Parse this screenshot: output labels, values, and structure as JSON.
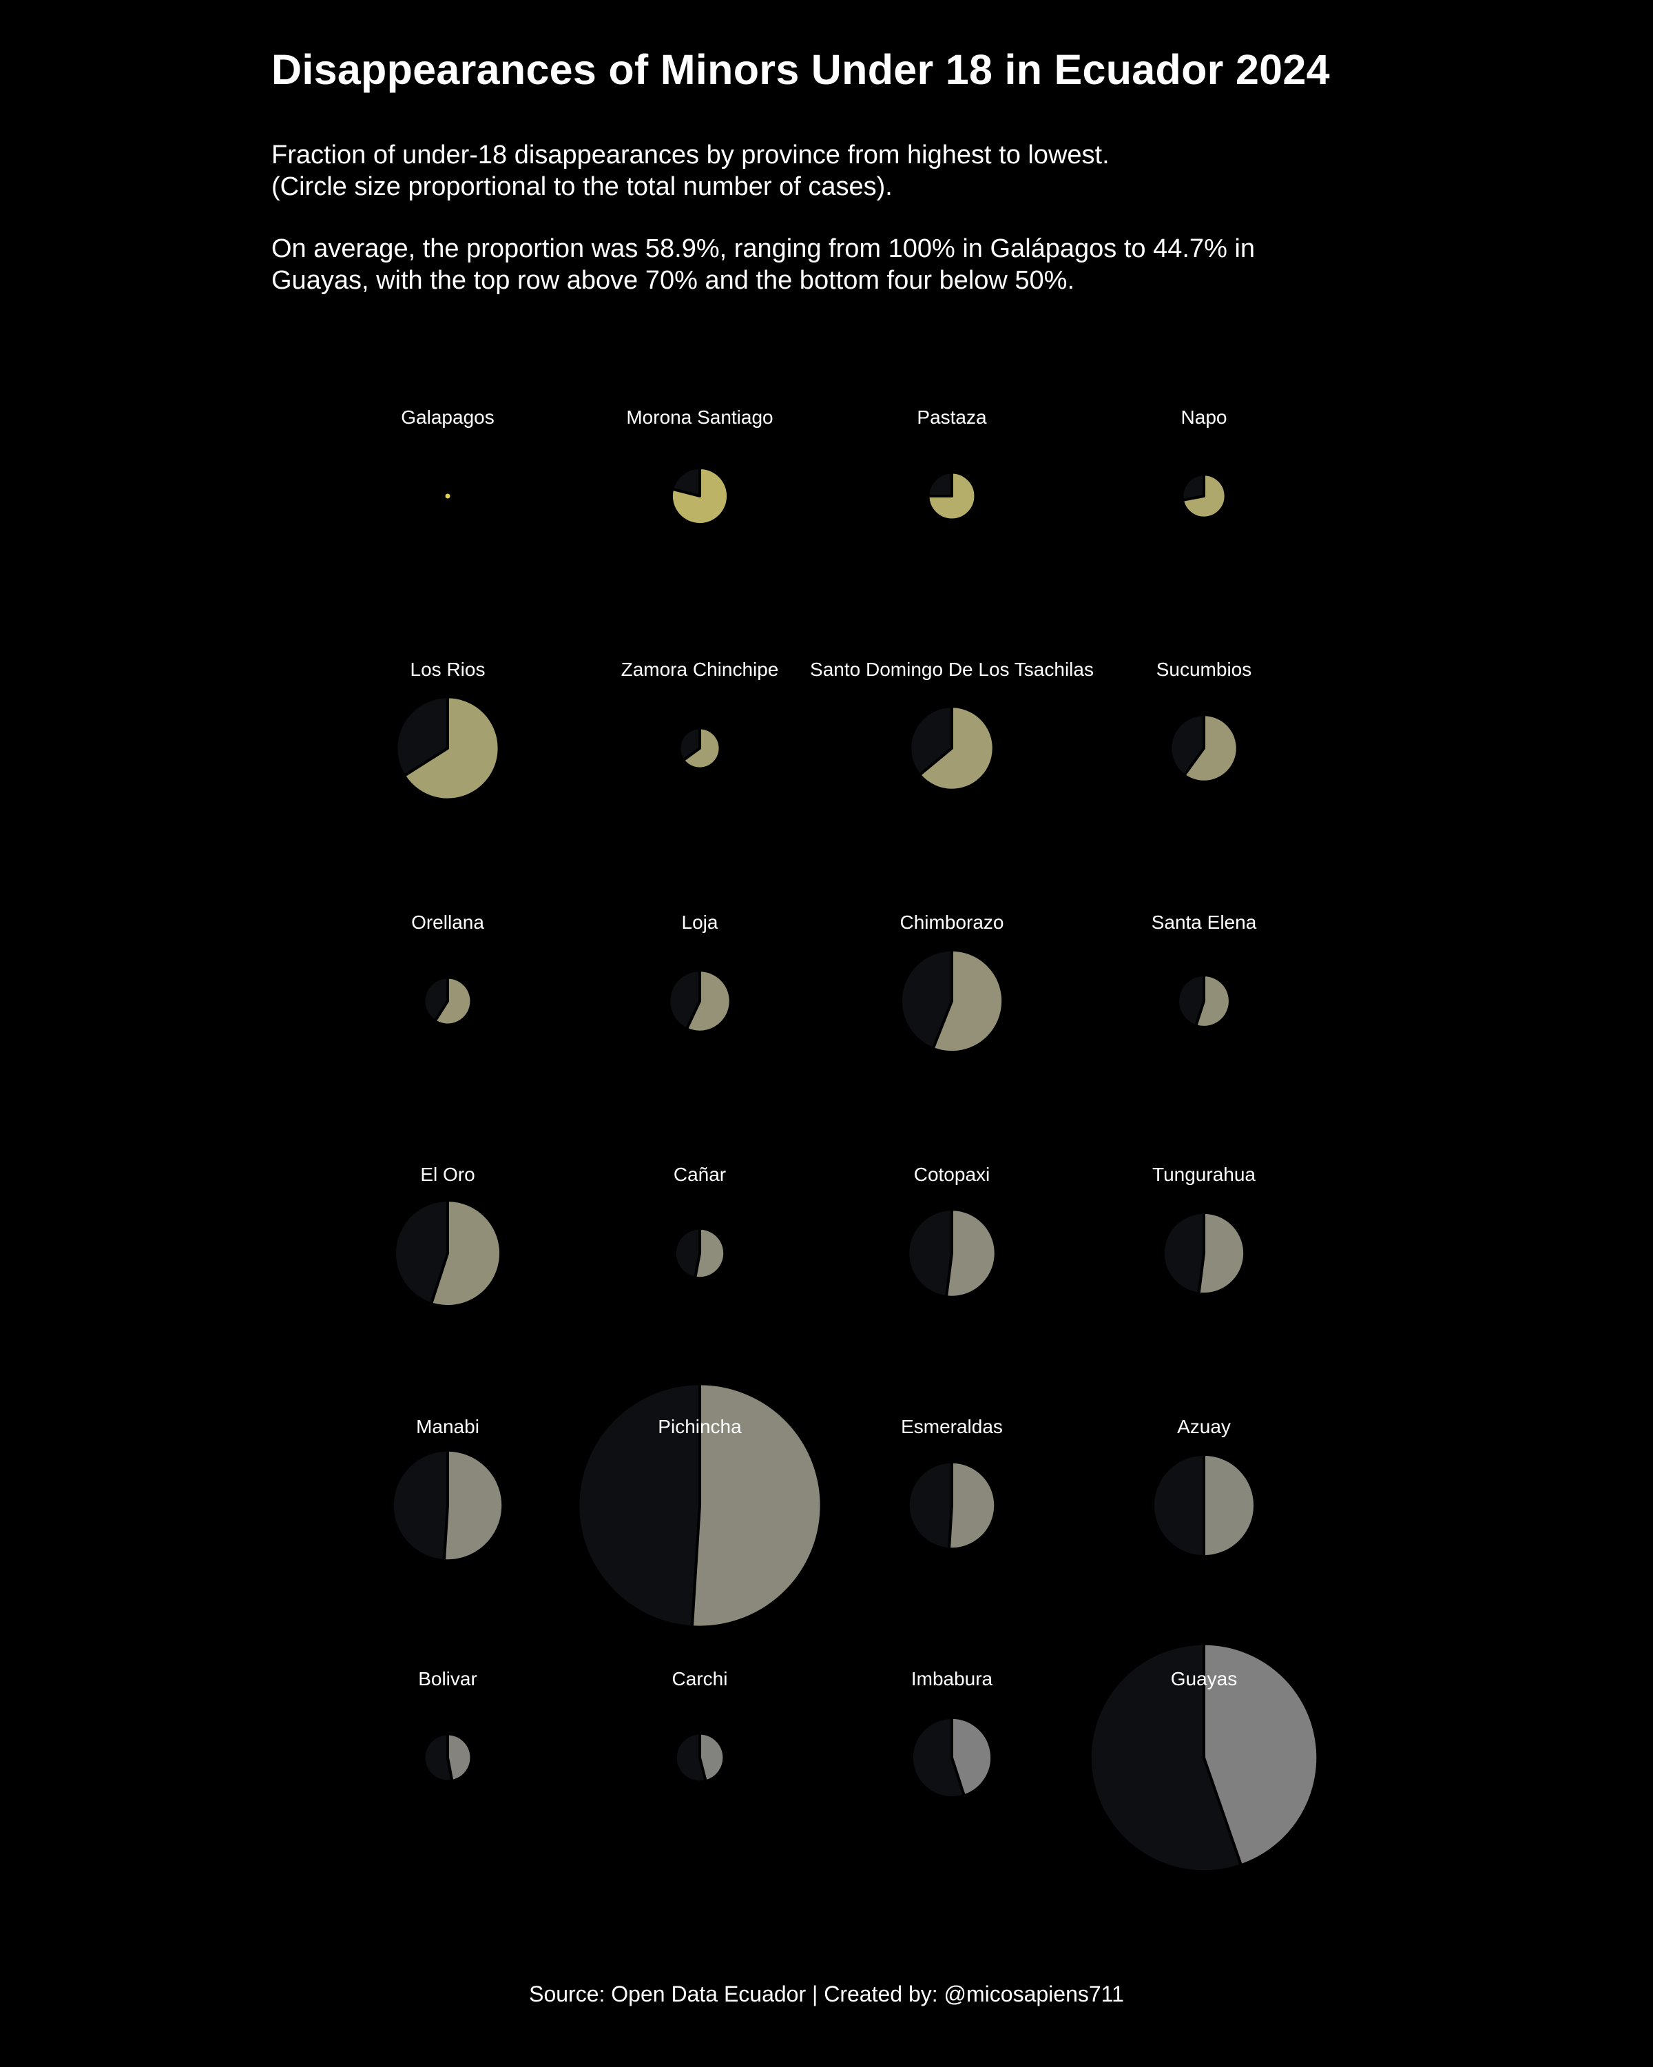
{
  "header": {
    "title": "Disappearances of Minors Under 18 in Ecuador 2024",
    "subtitle_line1": "Fraction of under-18 disappearances by province from highest to lowest.",
    "subtitle_line2": "(Circle size proportional to the total number of cases).",
    "description_line1": "On average, the proportion was 58.9%, ranging from 100% in Galápagos to 44.7% in",
    "description_line2": "Guayas, with the top row above 70% and the bottom four below 50%."
  },
  "footer": {
    "source": "Source: Open Data Ecuador | Created by: @micosapiens711"
  },
  "colors": {
    "background": "#000000",
    "remainder": "#0d0f12",
    "outline": "#000000",
    "high_fraction": "#e0d257",
    "low_fraction": "#808080",
    "text": "#ffffff"
  },
  "chart_data": {
    "type": "pie",
    "layout": "small-multiples grid, 4 columns x 6 rows, ordered by fraction descending",
    "measure": "fraction of disappearances that are minors under 18",
    "size_measure": "total number of cases (estimated from circle area)",
    "panels": [
      {
        "label": "Galapagos",
        "fraction": 1.0,
        "total_cases": 1
      },
      {
        "label": "Morona Santiago",
        "fraction": 0.79,
        "total_cases": 270
      },
      {
        "label": "Pastaza",
        "fraction": 0.75,
        "total_cases": 190
      },
      {
        "label": "Napo",
        "fraction": 0.72,
        "total_cases": 160
      },
      {
        "label": "Los Rios",
        "fraction": 0.66,
        "total_cases": 890
      },
      {
        "label": "Zamora Chinchipe",
        "fraction": 0.65,
        "total_cases": 140
      },
      {
        "label": "Santo Domingo De Los Tsachilas",
        "fraction": 0.64,
        "total_cases": 590
      },
      {
        "label": "Sucumbios",
        "fraction": 0.6,
        "total_cases": 380
      },
      {
        "label": "Orellana",
        "fraction": 0.59,
        "total_cases": 190
      },
      {
        "label": "Loja",
        "fraction": 0.57,
        "total_cases": 320
      },
      {
        "label": "Chimborazo",
        "fraction": 0.56,
        "total_cases": 880
      },
      {
        "label": "Santa Elena",
        "fraction": 0.55,
        "total_cases": 230
      },
      {
        "label": "El Oro",
        "fraction": 0.55,
        "total_cases": 950
      },
      {
        "label": "Cañar",
        "fraction": 0.53,
        "total_cases": 210
      },
      {
        "label": "Cotopaxi",
        "fraction": 0.52,
        "total_cases": 650
      },
      {
        "label": "Tungurahua",
        "fraction": 0.52,
        "total_cases": 560
      },
      {
        "label": "Manabi",
        "fraction": 0.51,
        "total_cases": 1030
      },
      {
        "label": "Pichincha",
        "fraction": 0.51,
        "total_cases": 4990
      },
      {
        "label": "Esmeraldas",
        "fraction": 0.51,
        "total_cases": 640
      },
      {
        "label": "Azuay",
        "fraction": 0.5,
        "total_cases": 880
      },
      {
        "label": "Bolivar",
        "fraction": 0.47,
        "total_cases": 190
      },
      {
        "label": "Carchi",
        "fraction": 0.46,
        "total_cases": 200
      },
      {
        "label": "Imbabura",
        "fraction": 0.45,
        "total_cases": 540
      },
      {
        "label": "Guayas",
        "fraction": 0.447,
        "total_cases": 4370
      }
    ]
  }
}
